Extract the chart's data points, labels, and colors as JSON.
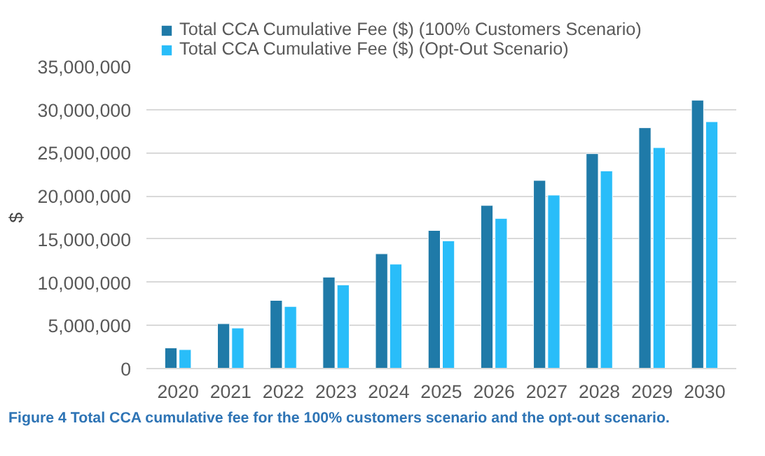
{
  "chart_data": {
    "type": "bar",
    "ylabel": "$",
    "categories": [
      "2020",
      "2021",
      "2022",
      "2023",
      "2024",
      "2025",
      "2026",
      "2027",
      "2028",
      "2029",
      "2030"
    ],
    "series": [
      {
        "name": "Total CCA Cumulative Fee ($) (100% Customers Scenario)",
        "color": "#1f7aa8",
        "values": [
          2400000,
          5200000,
          7900000,
          10600000,
          13300000,
          16000000,
          18900000,
          21800000,
          24900000,
          27900000,
          31100000
        ]
      },
      {
        "name": "Total CCA Cumulative Fee ($) (Opt-Out Scenario)",
        "color": "#29bdf9",
        "values": [
          2200000,
          4700000,
          7200000,
          9700000,
          12100000,
          14800000,
          17400000,
          20100000,
          22900000,
          25600000,
          28600000
        ]
      }
    ],
    "ylim": [
      0,
      35000000
    ],
    "yticks": [
      {
        "value": 0,
        "label": "0"
      },
      {
        "value": 5000000,
        "label": "5,000,000"
      },
      {
        "value": 10000000,
        "label": "10,000,000"
      },
      {
        "value": 15000000,
        "label": "15,000,000"
      },
      {
        "value": 20000000,
        "label": "20,000,000"
      },
      {
        "value": 25000000,
        "label": "25,000,000"
      },
      {
        "value": 30000000,
        "label": "30,000,000"
      },
      {
        "value": 35000000,
        "label": "35,000,000"
      }
    ],
    "grid": "y",
    "legend": "top",
    "annotations": [
      "Figure 4 Total CCA cumulative fee for the 100% customers scenario and the opt-out scenario."
    ]
  }
}
